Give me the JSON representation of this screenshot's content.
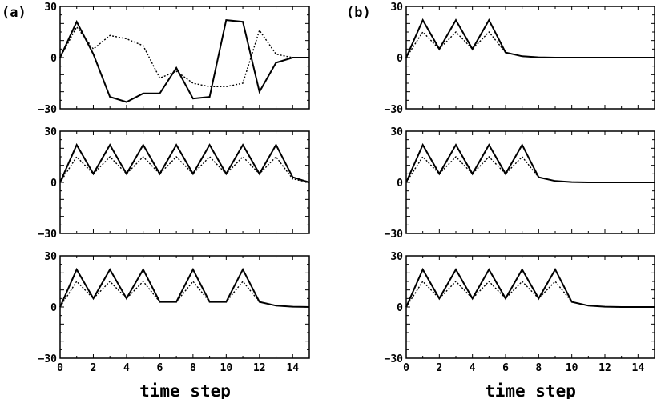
{
  "figure": {
    "column_labels": [
      "(a)",
      "(b)"
    ],
    "xlabel": "time step"
  },
  "chart_data": [
    {
      "type": "line",
      "column": "(a)",
      "row": 1,
      "x": [
        0,
        1,
        2,
        3,
        4,
        5,
        6,
        7,
        8,
        9,
        10,
        11,
        12,
        13,
        14,
        15
      ],
      "xlim": [
        0,
        15
      ],
      "ylim": [
        -30,
        30
      ],
      "xticks": [],
      "yticks": [
        30,
        0,
        -30
      ],
      "series": [
        {
          "style": "solid",
          "values": [
            0,
            21,
            2,
            -23,
            -26,
            -21,
            -21,
            -6,
            -24,
            -23,
            22,
            21,
            -20,
            -3,
            0,
            0
          ]
        },
        {
          "style": "dotted",
          "values": [
            0,
            18,
            5,
            13,
            11,
            7,
            -12,
            -8,
            -15,
            -17,
            -17,
            -15,
            16,
            2,
            0,
            0
          ]
        }
      ]
    },
    {
      "type": "line",
      "column": "(a)",
      "row": 2,
      "x": [
        0,
        1,
        2,
        3,
        4,
        5,
        6,
        7,
        8,
        9,
        10,
        11,
        12,
        13,
        14,
        15
      ],
      "xlim": [
        0,
        15
      ],
      "ylim": [
        -30,
        30
      ],
      "xticks": [],
      "yticks": [
        30,
        0,
        -30
      ],
      "series": [
        {
          "style": "solid",
          "values": [
            0,
            22,
            5,
            22,
            5,
            22,
            5,
            22,
            5,
            22,
            5,
            22,
            5,
            22,
            3,
            0
          ]
        },
        {
          "style": "dotted",
          "values": [
            0,
            15,
            5,
            15,
            5,
            15,
            5,
            15,
            5,
            15,
            5,
            15,
            5,
            15,
            2,
            0
          ]
        }
      ]
    },
    {
      "type": "line",
      "column": "(a)",
      "row": 3,
      "x": [
        0,
        1,
        2,
        3,
        4,
        5,
        6,
        7,
        8,
        9,
        10,
        11,
        12,
        13,
        14,
        15
      ],
      "xlim": [
        0,
        15
      ],
      "ylim": [
        -30,
        30
      ],
      "xticks": [
        0,
        2,
        4,
        6,
        8,
        10,
        12,
        14
      ],
      "yticks": [
        30,
        0,
        -30
      ],
      "series": [
        {
          "style": "solid",
          "values": [
            0,
            22,
            5,
            22,
            5,
            22,
            3,
            3,
            22,
            3,
            3,
            22,
            3,
            0.8,
            0.2,
            0
          ]
        },
        {
          "style": "dotted",
          "values": [
            0,
            15,
            5,
            15,
            5,
            15,
            3,
            3,
            15,
            3,
            3,
            15,
            3,
            0.8,
            0.2,
            0
          ]
        }
      ]
    },
    {
      "type": "line",
      "column": "(b)",
      "row": 1,
      "x": [
        0,
        1,
        2,
        3,
        4,
        5,
        6,
        7,
        8,
        9,
        10,
        11,
        12,
        13,
        14,
        15
      ],
      "xlim": [
        0,
        15
      ],
      "ylim": [
        -30,
        30
      ],
      "xticks": [],
      "yticks": [
        30,
        0,
        -30
      ],
      "series": [
        {
          "style": "solid",
          "values": [
            0,
            22,
            5,
            22,
            5,
            22,
            3,
            0.8,
            0.2,
            0,
            0,
            0,
            0,
            0,
            0,
            0
          ]
        },
        {
          "style": "dotted",
          "values": [
            0,
            15,
            5,
            15,
            5,
            15,
            3,
            0.8,
            0.2,
            0,
            0,
            0,
            0,
            0,
            0,
            0
          ]
        }
      ]
    },
    {
      "type": "line",
      "column": "(b)",
      "row": 2,
      "x": [
        0,
        1,
        2,
        3,
        4,
        5,
        6,
        7,
        8,
        9,
        10,
        11,
        12,
        13,
        14,
        15
      ],
      "xlim": [
        0,
        15
      ],
      "ylim": [
        -30,
        30
      ],
      "xticks": [],
      "yticks": [
        30,
        0,
        -30
      ],
      "series": [
        {
          "style": "solid",
          "values": [
            0,
            22,
            5,
            22,
            5,
            22,
            5,
            22,
            3,
            0.8,
            0.2,
            0,
            0,
            0,
            0,
            0
          ]
        },
        {
          "style": "dotted",
          "values": [
            0,
            15,
            5,
            15,
            5,
            15,
            5,
            15,
            3,
            0.8,
            0.2,
            0,
            0,
            0,
            0,
            0
          ]
        }
      ]
    },
    {
      "type": "line",
      "column": "(b)",
      "row": 3,
      "x": [
        0,
        1,
        2,
        3,
        4,
        5,
        6,
        7,
        8,
        9,
        10,
        11,
        12,
        13,
        14,
        15
      ],
      "xlim": [
        0,
        15
      ],
      "ylim": [
        -30,
        30
      ],
      "xticks": [
        0,
        2,
        4,
        6,
        8,
        10,
        12,
        14
      ],
      "yticks": [
        30,
        0,
        -30
      ],
      "series": [
        {
          "style": "solid",
          "values": [
            0,
            22,
            5,
            22,
            5,
            22,
            5,
            22,
            5,
            22,
            3,
            0.8,
            0.2,
            0,
            0,
            0
          ]
        },
        {
          "style": "dotted",
          "values": [
            0,
            15,
            5,
            15,
            5,
            15,
            5,
            15,
            5,
            15,
            3,
            0.8,
            0.2,
            0,
            0,
            0
          ]
        }
      ]
    }
  ]
}
